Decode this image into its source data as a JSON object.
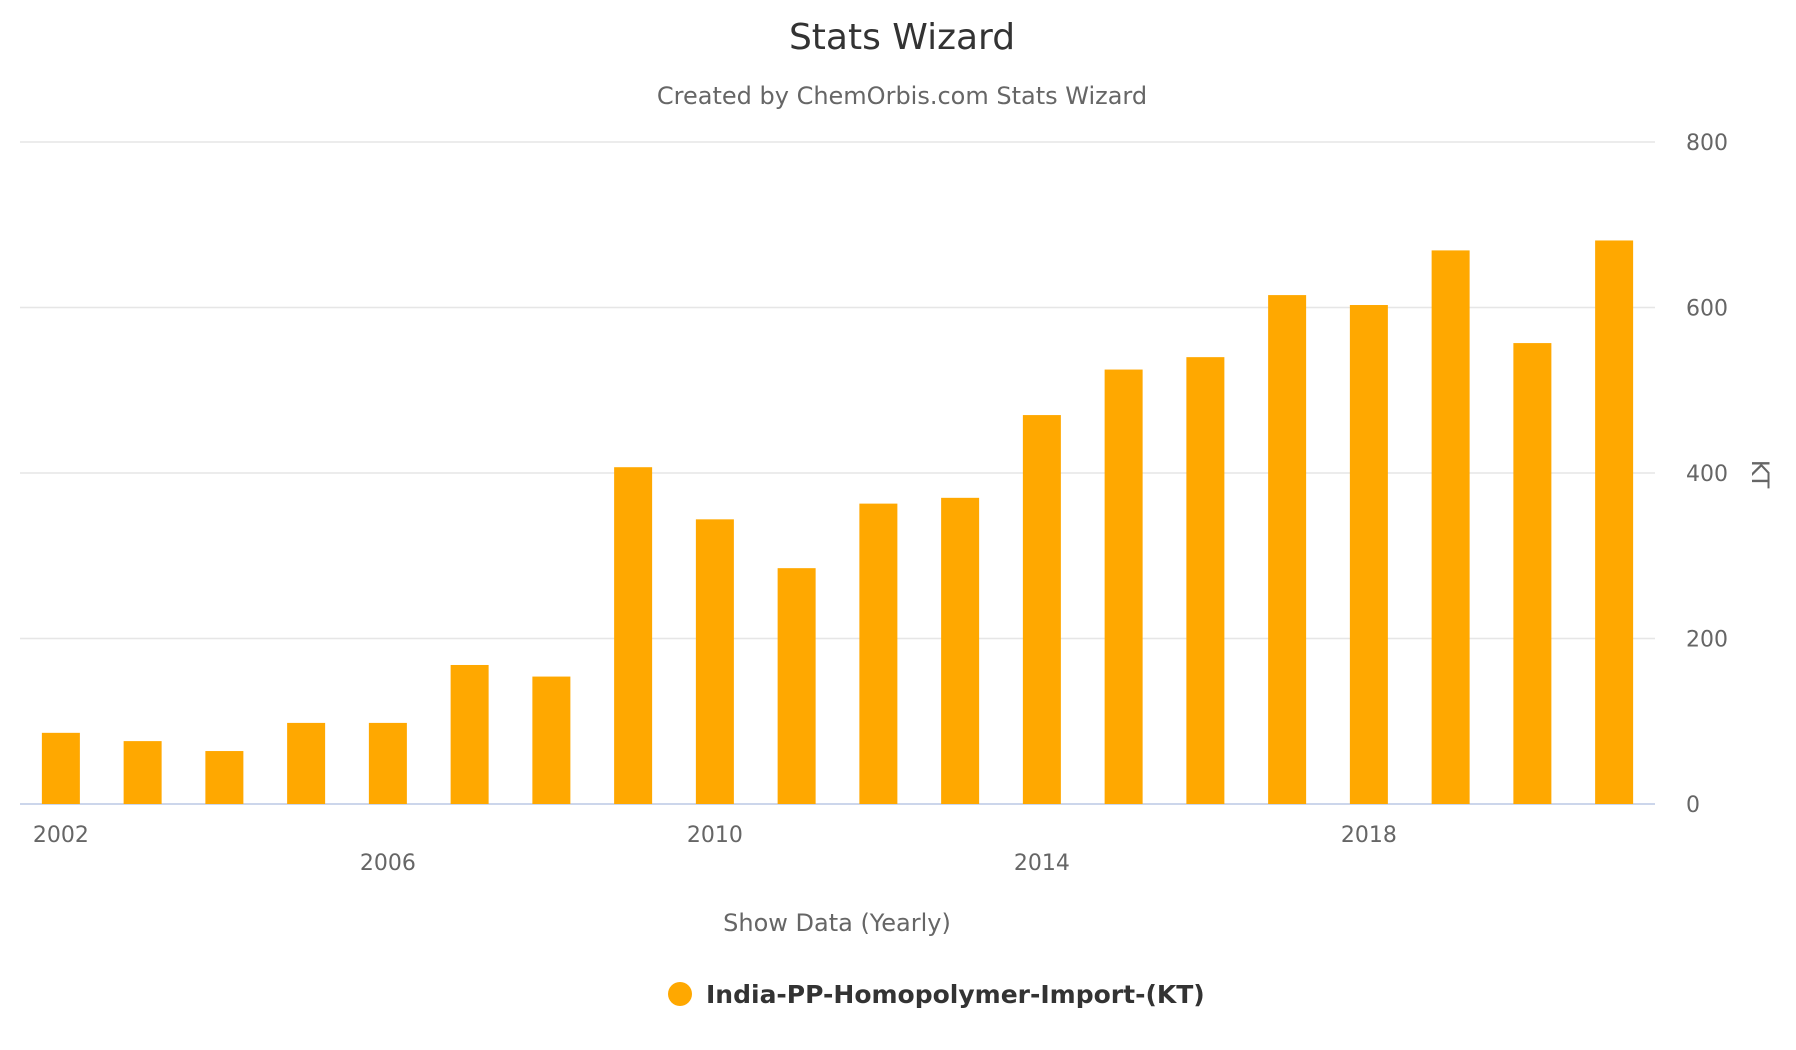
{
  "chart_data": {
    "type": "bar",
    "title": "Stats Wizard",
    "subtitle": "Created by ChemOrbis.com Stats Wizard",
    "xlabel": "Show Data (Yearly)",
    "ylabel": "KT",
    "categories": [
      "2002",
      "2003",
      "2004",
      "2005",
      "2006",
      "2007",
      "2008",
      "2009",
      "2010",
      "2011",
      "2012",
      "2013",
      "2014",
      "2015",
      "2016",
      "2017",
      "2018",
      "2019",
      "2020",
      "2021"
    ],
    "x_tick_labels": [
      "2002",
      "2006",
      "2010",
      "2014",
      "2018"
    ],
    "y_ticks": [
      "0",
      "200",
      "400",
      "600",
      "800"
    ],
    "ylim": [
      0,
      800
    ],
    "y_axis_position": "right",
    "grid": true,
    "legend_position": "bottom",
    "series": [
      {
        "name": "India-PP-Homopolymer-Import-(KT)",
        "color": "#FFA800",
        "values": [
          86,
          76,
          64,
          98,
          98,
          168,
          154,
          407,
          344,
          285,
          363,
          370,
          470,
          525,
          540,
          615,
          603,
          669,
          557,
          681
        ]
      }
    ]
  }
}
